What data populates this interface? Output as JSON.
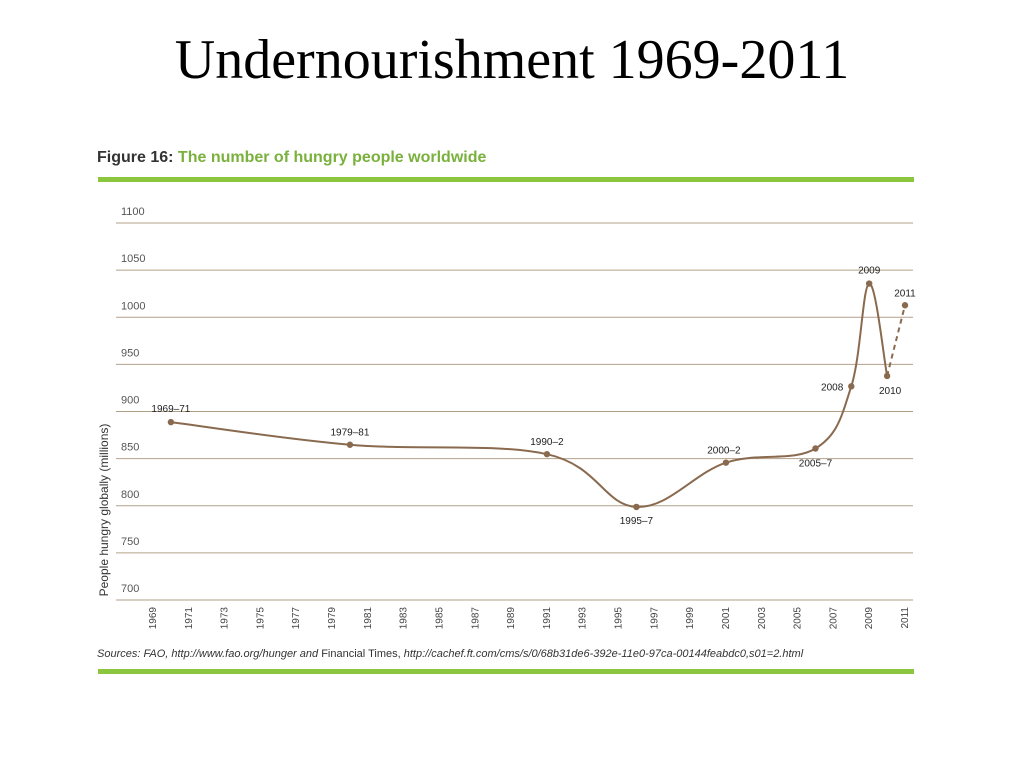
{
  "slide": {
    "title": "Undernourishment 1969-2011"
  },
  "figure": {
    "label": "Figure 16:",
    "title": "The number of hungry people worldwide",
    "sources_prefix": "Sources: FAO, http://www.fao.org/hunger and ",
    "sources_mid": "Financial Times, ",
    "sources_url": "http://cachef.ft.com/cms/s/0/68b31de6-392e-11e0-97ca-00144feabdc0,s01=2.html"
  },
  "colors": {
    "accent_green": "#8cc63f",
    "title_green": "#79b13c",
    "line": "#8a6a4f",
    "grid": "#b3a089"
  },
  "chart_data": {
    "type": "line",
    "ylabel": "People hungry globally (millions)",
    "xlabel": "",
    "ylim": [
      700,
      1100
    ],
    "yticks": [
      700,
      750,
      800,
      850,
      900,
      950,
      1000,
      1050,
      1100
    ],
    "xlim": [
      1969,
      2011
    ],
    "xticks": [
      "1969",
      "1971",
      "1973",
      "1975",
      "1977",
      "1979",
      "1981",
      "1983",
      "1985",
      "1987",
      "1989",
      "1991",
      "1993",
      "1995",
      "1997",
      "1999",
      "2001",
      "2003",
      "2005",
      "2007",
      "2009",
      "2011"
    ],
    "grid": true,
    "series": [
      {
        "points": [
          {
            "x": 1970,
            "y": 876,
            "label": "1969–71"
          },
          {
            "x": 1980,
            "y": 852,
            "label": "1979–81"
          },
          {
            "x": 1991,
            "y": 842,
            "label": "1990–2"
          },
          {
            "x": 1996,
            "y": 786,
            "label": "1995–7"
          },
          {
            "x": 2001,
            "y": 833,
            "label": "2000–2"
          },
          {
            "x": 2006,
            "y": 848,
            "label": "2005–7"
          },
          {
            "x": 2008,
            "y": 914,
            "label": "2008"
          },
          {
            "x": 2009,
            "y": 1023,
            "label": "2009"
          },
          {
            "x": 2010,
            "y": 925,
            "label": "2010"
          },
          {
            "x": 2011,
            "y": 1000,
            "label": "2011",
            "projected": true
          }
        ]
      }
    ]
  }
}
